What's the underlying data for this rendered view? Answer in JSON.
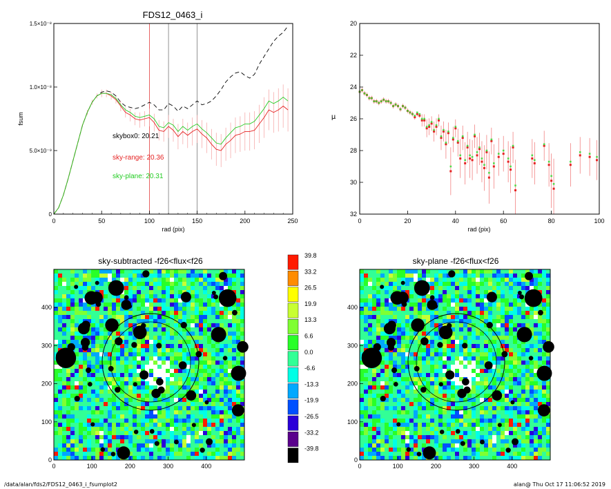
{
  "chart_data": [
    {
      "type": "line",
      "title": "FDS12_0463_i",
      "xlabel": "rad (pix)",
      "ylabel": "fsum",
      "xlim": [
        0,
        250
      ],
      "ylim": [
        0,
        1.5e-08
      ],
      "xticks": [
        "0",
        "50",
        "100",
        "150",
        "200",
        "250"
      ],
      "yticks": [
        "0",
        "5.0×10⁻⁹",
        "1.0×10⁻⁸",
        "1.5×10⁻⁸"
      ],
      "vlines": [
        {
          "x": 100,
          "color": "#e33b3b"
        },
        {
          "x": 120,
          "color": "#777777"
        },
        {
          "x": 150,
          "color": "#777777"
        }
      ],
      "annotations": [
        {
          "text": "skybox0: 20.21",
          "color": "#000000"
        },
        {
          "text": "sky-range: 20.36",
          "color": "#e52222"
        },
        {
          "text": "sky-plane: 20.31",
          "color": "#22cc22"
        }
      ],
      "series": [
        {
          "style": "dashed",
          "color": "#000000",
          "x": [
            0,
            5,
            10,
            15,
            20,
            25,
            30,
            35,
            40,
            45,
            50,
            55,
            60,
            65,
            70,
            75,
            80,
            85,
            90,
            95,
            100,
            105,
            110,
            115,
            120,
            125,
            130,
            135,
            140,
            145,
            150,
            155,
            160,
            165,
            170,
            175,
            180,
            185,
            190,
            195,
            200,
            205,
            210,
            215,
            220,
            225,
            230,
            235,
            240,
            245
          ],
          "y": [
            0,
            5e-10,
            1.5e-09,
            2.8e-09,
            4.2e-09,
            5.6e-09,
            7e-09,
            8e-09,
            8.8e-09,
            9.3e-09,
            9.6e-09,
            9.7e-09,
            9.6e-09,
            9.3e-09,
            8.8e-09,
            8.5e-09,
            8.4e-09,
            8.3e-09,
            8.4e-09,
            8.6e-09,
            8.8e-09,
            8.6e-09,
            8.2e-09,
            8.2e-09,
            8.7e-09,
            8.5e-09,
            8.1e-09,
            8.5e-09,
            8.3e-09,
            8.6e-09,
            8.9e-09,
            8.6e-09,
            8.7e-09,
            8.9e-09,
            9.3e-09,
            9.8e-09,
            1.04e-08,
            1.08e-08,
            1.11e-08,
            1.12e-08,
            1.09e-08,
            1.07e-08,
            1.1e-08,
            1.18e-08,
            1.24e-08,
            1.3e-08,
            1.36e-08,
            1.4e-08,
            1.43e-08,
            1.48e-08
          ]
        },
        {
          "style": "solid",
          "color": "#e52222",
          "errorbars": true,
          "x": [
            0,
            5,
            10,
            15,
            20,
            25,
            30,
            35,
            40,
            45,
            50,
            55,
            60,
            65,
            70,
            75,
            80,
            85,
            90,
            95,
            100,
            105,
            110,
            115,
            120,
            125,
            130,
            135,
            140,
            145,
            150,
            155,
            160,
            165,
            170,
            175,
            180,
            185,
            190,
            195,
            200,
            205,
            210,
            215,
            220,
            225,
            230,
            235,
            240,
            245
          ],
          "y": [
            0,
            5e-10,
            1.5e-09,
            2.8e-09,
            4.2e-09,
            5.6e-09,
            7e-09,
            8e-09,
            8.8e-09,
            9.3e-09,
            9.5e-09,
            9.5e-09,
            9.3e-09,
            9e-09,
            8.5e-09,
            8e-09,
            7.8e-09,
            7.5e-09,
            7.4e-09,
            7.5e-09,
            7.6e-09,
            7.2e-09,
            6.6e-09,
            6.5e-09,
            6.9e-09,
            6.6e-09,
            6.1e-09,
            6.5e-09,
            6.2e-09,
            6.5e-09,
            6.7e-09,
            6.3e-09,
            6e-09,
            5.5e-09,
            5.1e-09,
            5e-09,
            5.5e-09,
            5.8e-09,
            6.2e-09,
            6.3e-09,
            6.5e-09,
            6.5e-09,
            6.6e-09,
            7.1e-09,
            7.6e-09,
            8.2e-09,
            8e-09,
            8.2e-09,
            8.5e-09,
            8.2e-09
          ],
          "err": [
            0,
            0,
            0,
            0,
            0,
            0,
            1e-10,
            2e-10,
            2e-10,
            2e-10,
            3e-10,
            3e-10,
            3e-10,
            3e-10,
            4e-10,
            4e-10,
            5e-10,
            5e-10,
            6e-10,
            6e-10,
            7e-10,
            7e-10,
            8e-10,
            8e-10,
            9e-10,
            9e-10,
            1e-09,
            1e-09,
            1e-09,
            1.1e-09,
            1.1e-09,
            1.1e-09,
            1.2e-09,
            1.2e-09,
            1.3e-09,
            1.3e-09,
            1.3e-09,
            1.4e-09,
            1.4e-09,
            1.4e-09,
            1.5e-09,
            1.5e-09,
            1.5e-09,
            1.5e-09,
            1.6e-09,
            1.6e-09,
            1.6e-09,
            1.7e-09,
            1.7e-09,
            1.7e-09
          ]
        },
        {
          "style": "solid",
          "color": "#22cc22",
          "x": [
            0,
            5,
            10,
            15,
            20,
            25,
            30,
            35,
            40,
            45,
            50,
            55,
            60,
            65,
            70,
            75,
            80,
            85,
            90,
            95,
            100,
            105,
            110,
            115,
            120,
            125,
            130,
            135,
            140,
            145,
            150,
            155,
            160,
            165,
            170,
            175,
            180,
            185,
            190,
            195,
            200,
            205,
            210,
            215,
            220,
            225,
            230,
            235,
            240,
            245
          ],
          "y": [
            0,
            5e-10,
            1.5e-09,
            2.8e-09,
            4.2e-09,
            5.6e-09,
            7e-09,
            8e-09,
            8.8e-09,
            9.3e-09,
            9.5e-09,
            9.5e-09,
            9.4e-09,
            9.1e-09,
            8.6e-09,
            8.2e-09,
            8e-09,
            7.7e-09,
            7.6e-09,
            7.7e-09,
            7.8e-09,
            7.5e-09,
            6.9e-09,
            6.8e-09,
            7.2e-09,
            7e-09,
            6.5e-09,
            6.9e-09,
            6.6e-09,
            6.9e-09,
            7.1e-09,
            6.7e-09,
            6.4e-09,
            6e-09,
            5.6e-09,
            5.5e-09,
            6e-09,
            6.4e-09,
            6.8e-09,
            6.9e-09,
            7.1e-09,
            7.1e-09,
            7.3e-09,
            7.8e-09,
            8.3e-09,
            8.9e-09,
            8.7e-09,
            8.9e-09,
            9.2e-09,
            8.9e-09
          ]
        }
      ]
    },
    {
      "type": "scatter",
      "title": "",
      "xlabel": "rad (pix)",
      "ylabel": "μ",
      "xlim": [
        0,
        100
      ],
      "ylim": [
        32,
        20
      ],
      "xticks": [
        "0",
        "20",
        "40",
        "60",
        "80",
        "100"
      ],
      "yticks": [
        "20",
        "22",
        "24",
        "26",
        "28",
        "30",
        "32"
      ],
      "points_red": [
        [
          0,
          24.3
        ],
        [
          1,
          24.2
        ],
        [
          2,
          24.4
        ],
        [
          3,
          24.5
        ],
        [
          4,
          24.7
        ],
        [
          5,
          24.7
        ],
        [
          6,
          24.9
        ],
        [
          7,
          24.9
        ],
        [
          8,
          25.0
        ],
        [
          9,
          24.9
        ],
        [
          10,
          24.8
        ],
        [
          11,
          24.9
        ],
        [
          12,
          24.9
        ],
        [
          13,
          25.0
        ],
        [
          14,
          25.2
        ],
        [
          15,
          25.1
        ],
        [
          16,
          25.2
        ],
        [
          17,
          25.4
        ],
        [
          18,
          25.2
        ],
        [
          19,
          25.3
        ],
        [
          20,
          25.5
        ],
        [
          21,
          25.6
        ],
        [
          22,
          25.7
        ],
        [
          23,
          25.9
        ],
        [
          24,
          25.7
        ],
        [
          25,
          25.8
        ],
        [
          26,
          26.1
        ],
        [
          27,
          26.1
        ],
        [
          28,
          26.6
        ],
        [
          29,
          26.5
        ],
        [
          30,
          26.3
        ],
        [
          31,
          26.8
        ],
        [
          32,
          26.5
        ],
        [
          33,
          26.1
        ],
        [
          34,
          27.2
        ],
        [
          35,
          26.8
        ],
        [
          36,
          27.6
        ],
        [
          37,
          26.9
        ],
        [
          38,
          29.3
        ],
        [
          39,
          27.3
        ],
        [
          40,
          26.6
        ],
        [
          41,
          27.5
        ],
        [
          42,
          28.5
        ],
        [
          43,
          27.2
        ],
        [
          44,
          28.8
        ],
        [
          45,
          27.8
        ],
        [
          46,
          28.5
        ],
        [
          47,
          28.6
        ],
        [
          48,
          27.1
        ],
        [
          49,
          28.3
        ],
        [
          50,
          27.9
        ],
        [
          51,
          28.7
        ],
        [
          52,
          29.1
        ],
        [
          53,
          28.1
        ],
        [
          54,
          29.7
        ],
        [
          55,
          27.4
        ],
        [
          56,
          29.0
        ],
        [
          58,
          28.4
        ],
        [
          60,
          28.2
        ],
        [
          62,
          28.7
        ],
        [
          63,
          29.2
        ],
        [
          64,
          27.8
        ],
        [
          65,
          30.5
        ],
        [
          72,
          28.5
        ],
        [
          73,
          28.8
        ],
        [
          77,
          27.7
        ],
        [
          79,
          28.9
        ],
        [
          80,
          29.9
        ],
        [
          81,
          30.4
        ],
        [
          88,
          28.9
        ],
        [
          92,
          28.3
        ],
        [
          96,
          28.4
        ],
        [
          99,
          28.6
        ]
      ],
      "points_green": [
        [
          0,
          24.3
        ],
        [
          1,
          24.2
        ],
        [
          2,
          24.4
        ],
        [
          3,
          24.5
        ],
        [
          4,
          24.7
        ],
        [
          5,
          24.7
        ],
        [
          6,
          24.9
        ],
        [
          7,
          24.9
        ],
        [
          8,
          25.0
        ],
        [
          9,
          24.9
        ],
        [
          10,
          24.8
        ],
        [
          11,
          24.9
        ],
        [
          12,
          24.9
        ],
        [
          13,
          25.0
        ],
        [
          14,
          25.2
        ],
        [
          15,
          25.1
        ],
        [
          16,
          25.2
        ],
        [
          17,
          25.4
        ],
        [
          18,
          25.2
        ],
        [
          19,
          25.3
        ],
        [
          20,
          25.5
        ],
        [
          21,
          25.6
        ],
        [
          22,
          25.7
        ],
        [
          23,
          25.8
        ],
        [
          24,
          25.6
        ],
        [
          25,
          25.7
        ],
        [
          26,
          26.0
        ],
        [
          27,
          26.0
        ],
        [
          28,
          26.5
        ],
        [
          29,
          26.4
        ],
        [
          30,
          26.2
        ],
        [
          31,
          26.7
        ],
        [
          32,
          26.4
        ],
        [
          33,
          26.0
        ],
        [
          34,
          27.1
        ],
        [
          35,
          26.7
        ],
        [
          36,
          27.5
        ],
        [
          37,
          26.8
        ],
        [
          38,
          29.0
        ],
        [
          39,
          27.2
        ],
        [
          40,
          26.5
        ],
        [
          41,
          27.4
        ],
        [
          42,
          28.3
        ],
        [
          43,
          27.1
        ],
        [
          44,
          28.6
        ],
        [
          45,
          27.7
        ],
        [
          46,
          28.3
        ],
        [
          47,
          28.4
        ],
        [
          48,
          27.0
        ],
        [
          49,
          28.1
        ],
        [
          50,
          27.8
        ],
        [
          51,
          28.5
        ],
        [
          52,
          28.9
        ],
        [
          53,
          28.0
        ],
        [
          54,
          29.4
        ],
        [
          55,
          27.3
        ],
        [
          56,
          28.8
        ],
        [
          58,
          28.2
        ],
        [
          60,
          28.0
        ],
        [
          62,
          28.5
        ],
        [
          63,
          29.0
        ],
        [
          64,
          27.7
        ],
        [
          65,
          30.2
        ],
        [
          72,
          28.3
        ],
        [
          73,
          28.6
        ],
        [
          77,
          27.6
        ],
        [
          79,
          28.7
        ],
        [
          80,
          29.6
        ],
        [
          81,
          30.1
        ],
        [
          88,
          28.7
        ],
        [
          92,
          28.1
        ],
        [
          96,
          28.2
        ],
        [
          99,
          28.4
        ]
      ]
    },
    {
      "type": "heatmap",
      "title": "sky-subtracted -f26<flux<f26",
      "xlim": [
        0,
        500
      ],
      "ylim": [
        0,
        500
      ],
      "xticks": [
        "0",
        "100",
        "200",
        "300",
        "400"
      ],
      "yticks": [
        "0",
        "100",
        "200",
        "300",
        "400"
      ]
    },
    {
      "type": "heatmap",
      "title": "sky-plane -f26<flux<f26",
      "xlim": [
        0,
        500
      ],
      "ylim": [
        0,
        500
      ],
      "xticks": [
        "0",
        "100",
        "200",
        "300",
        "400"
      ],
      "yticks": [
        "0",
        "100",
        "200",
        "300",
        "400"
      ]
    }
  ],
  "colorbar": {
    "labels": [
      "39.8",
      "33.2",
      "26.5",
      "19.9",
      "13.3",
      "6.6",
      "0.0",
      "-6.6",
      "-13.3",
      "-19.9",
      "-26.5",
      "-33.2",
      "-39.8"
    ],
    "colors": [
      "#ff1a00",
      "#ff8c00",
      "#ffff00",
      "#c8ff32",
      "#7fff32",
      "#28ff28",
      "#32ff96",
      "#00ffe6",
      "#00a8ff",
      "#0050ff",
      "#2a00d8",
      "#5a008c",
      "#000000"
    ]
  },
  "footer": {
    "left": "/data/alan/fds2/FDS12_0463_i_fsumplot2",
    "right": "alan@  Thu Oct 17 11:06:52 2019"
  }
}
